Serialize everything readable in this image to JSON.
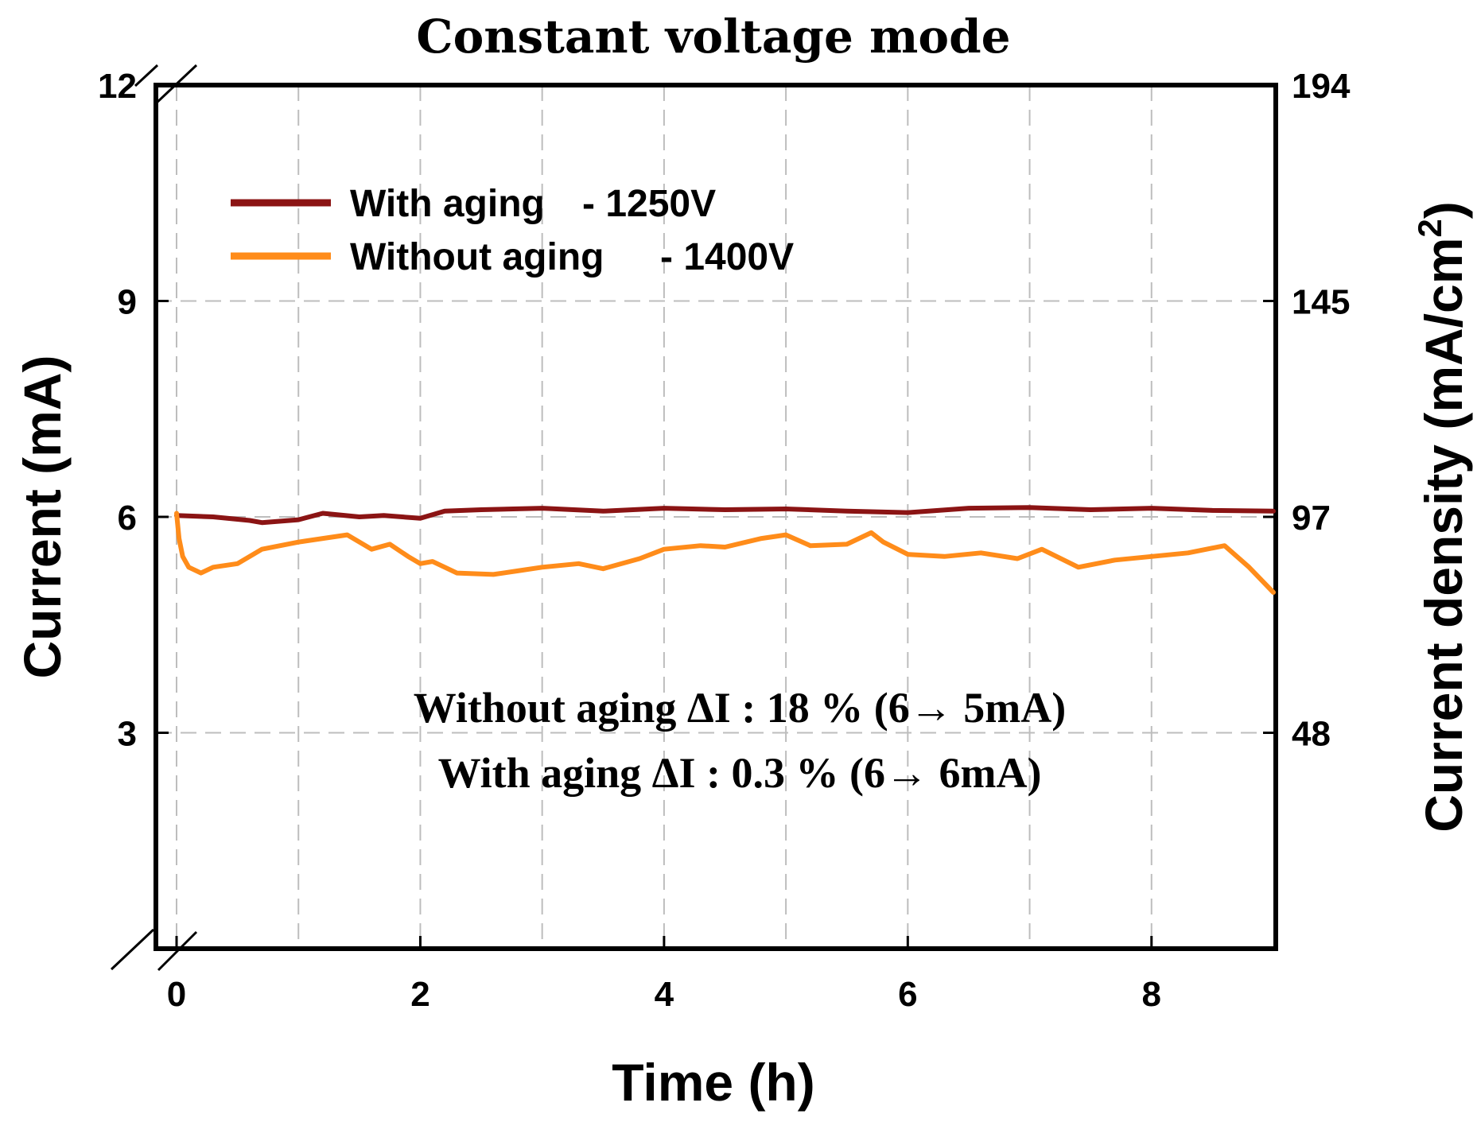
{
  "chart_data": {
    "type": "line",
    "title": "Constant voltage mode",
    "xlabel": "Time (h)",
    "ylabel": "Current (mA)",
    "y2label": "Current density (mA/cm",
    "y2label_sup": "2",
    "y2label_end": ")",
    "xlim": [
      0,
      9
    ],
    "ylim": [
      0,
      12
    ],
    "xticks": [
      0,
      2,
      4,
      6,
      8
    ],
    "yticks": [
      3,
      6,
      9,
      12
    ],
    "ytick_labels": [
      "3",
      "6",
      "9",
      "12"
    ],
    "y2ticks": [
      3,
      6,
      9,
      12
    ],
    "y2tick_labels": [
      "48",
      "97",
      "145",
      "194"
    ],
    "grid": true,
    "legend_position": "top-left",
    "series": [
      {
        "name": "With aging - 1250V",
        "legend_main": "With aging",
        "legend_suffix": "- 1250V",
        "color": "#8b1414",
        "x": [
          0,
          0.3,
          0.6,
          0.7,
          1.0,
          1.2,
          1.5,
          1.7,
          2.0,
          2.2,
          2.5,
          3.0,
          3.5,
          4.0,
          4.5,
          5.0,
          5.5,
          6.0,
          6.5,
          7.0,
          7.5,
          8.0,
          8.5,
          9.0
        ],
        "y": [
          6.02,
          6.0,
          5.95,
          5.92,
          5.96,
          6.05,
          6.0,
          6.02,
          5.98,
          6.08,
          6.1,
          6.12,
          6.08,
          6.12,
          6.1,
          6.11,
          6.08,
          6.06,
          6.12,
          6.13,
          6.1,
          6.12,
          6.09,
          6.08
        ]
      },
      {
        "name": "Without aging - 1400V",
        "legend_main": "Without aging",
        "legend_suffix": "- 1400V",
        "color": "#ff8c1a",
        "x": [
          0,
          0.02,
          0.05,
          0.1,
          0.2,
          0.3,
          0.5,
          0.7,
          1.0,
          1.2,
          1.4,
          1.6,
          1.75,
          1.9,
          2.0,
          2.1,
          2.3,
          2.6,
          2.8,
          3.0,
          3.3,
          3.5,
          3.8,
          4.0,
          4.3,
          4.5,
          4.8,
          5.0,
          5.2,
          5.5,
          5.7,
          5.8,
          6.0,
          6.3,
          6.6,
          6.9,
          7.1,
          7.4,
          7.7,
          8.0,
          8.3,
          8.6,
          8.8,
          9.0
        ],
        "y": [
          6.05,
          5.7,
          5.45,
          5.3,
          5.22,
          5.3,
          5.35,
          5.55,
          5.65,
          5.7,
          5.75,
          5.55,
          5.62,
          5.45,
          5.35,
          5.38,
          5.22,
          5.2,
          5.25,
          5.3,
          5.35,
          5.28,
          5.42,
          5.55,
          5.6,
          5.58,
          5.7,
          5.75,
          5.6,
          5.62,
          5.78,
          5.65,
          5.48,
          5.45,
          5.5,
          5.42,
          5.55,
          5.3,
          5.4,
          5.45,
          5.5,
          5.6,
          5.3,
          4.95
        ]
      }
    ],
    "annotations": [
      "Without aging ΔI : 18 % (6→ 5mA)",
      "With aging ΔI : 0.3 % (6→ 6mA)"
    ]
  }
}
